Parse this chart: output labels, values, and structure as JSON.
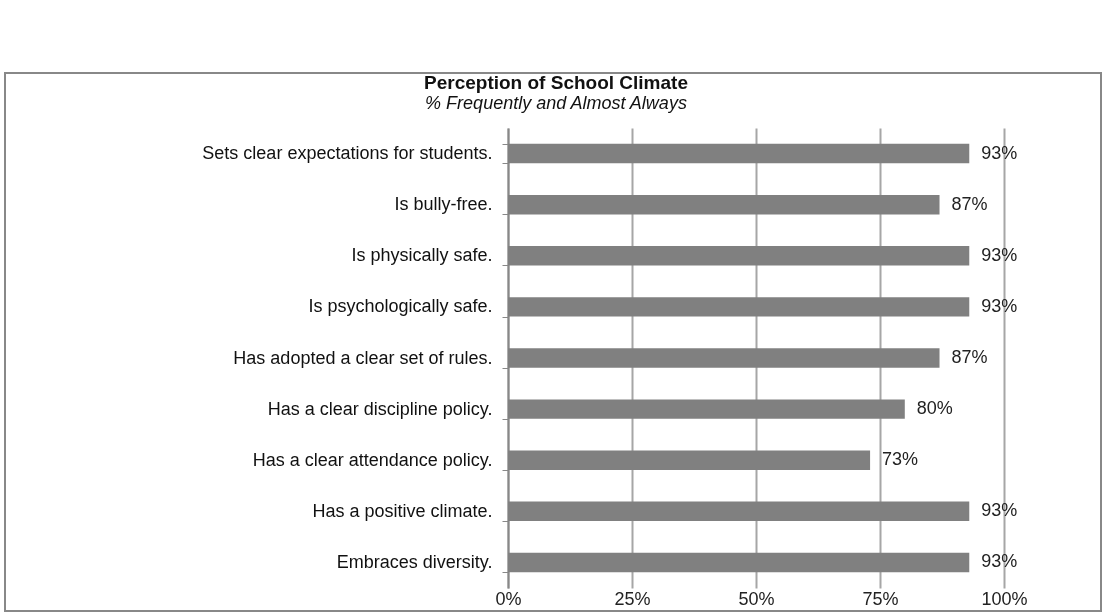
{
  "chart_data": {
    "type": "bar",
    "orientation": "horizontal",
    "title": "Perception of School Climate",
    "subtitle": "% Frequently and Almost Always",
    "categories": [
      "Sets clear expectations for students.",
      "Is bully-free.",
      "Is physically safe.",
      "Is psychologically safe.",
      "Has adopted a clear set of rules.",
      "Has a clear discipline policy.",
      "Has a clear attendance policy.",
      "Has a positive climate.",
      "Embraces diversity."
    ],
    "values": [
      93,
      87,
      93,
      93,
      87,
      80,
      73,
      93,
      93
    ],
    "value_labels": [
      "93%",
      "87%",
      "93%",
      "93%",
      "87%",
      "80%",
      "73%",
      "93%",
      "93%"
    ],
    "color": "#808080",
    "xlim": [
      0,
      100
    ],
    "xticks": [
      {
        "value": 0,
        "label": "0%"
      },
      {
        "value": 25,
        "label": "25%"
      },
      {
        "value": 50,
        "label": "50%"
      },
      {
        "value": 75,
        "label": "75%"
      },
      {
        "value": 100,
        "label": "100%"
      }
    ],
    "grid": "x"
  }
}
